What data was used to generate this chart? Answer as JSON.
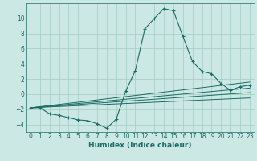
{
  "background_color": "#cce8e4",
  "grid_color": "#aacfca",
  "line_color": "#1a6b65",
  "xlabel": "Humidex (Indice chaleur)",
  "xlim": [
    -0.5,
    23.5
  ],
  "ylim": [
    -5.0,
    12.0
  ],
  "xticks": [
    0,
    1,
    2,
    3,
    4,
    5,
    6,
    7,
    8,
    9,
    10,
    11,
    12,
    13,
    14,
    15,
    16,
    17,
    18,
    19,
    20,
    21,
    22,
    23
  ],
  "yticks": [
    -4,
    -2,
    0,
    2,
    4,
    6,
    8,
    10
  ],
  "curve1_x": [
    0,
    1,
    2,
    3,
    4,
    5,
    6,
    7,
    8,
    9,
    10,
    11,
    12,
    13,
    14,
    15,
    16,
    17,
    18,
    19,
    20,
    21,
    22,
    23
  ],
  "curve1_y": [
    -1.8,
    -1.8,
    -2.6,
    -2.8,
    -3.1,
    -3.4,
    -3.5,
    -3.9,
    -4.5,
    -3.3,
    0.4,
    3.1,
    8.6,
    10.0,
    11.3,
    11.0,
    7.6,
    4.3,
    3.0,
    2.7,
    1.4,
    0.5,
    1.0,
    1.2
  ],
  "line2_x": [
    0,
    23
  ],
  "line2_y": [
    -1.8,
    1.6
  ],
  "line3_x": [
    0,
    23
  ],
  "line3_y": [
    -1.8,
    0.8
  ],
  "line4_x": [
    0,
    23
  ],
  "line4_y": [
    -1.8,
    0.2
  ],
  "line5_x": [
    0,
    23
  ],
  "line5_y": [
    -1.8,
    -0.5
  ],
  "xlabel_fontsize": 6.5,
  "tick_fontsize": 5.5
}
